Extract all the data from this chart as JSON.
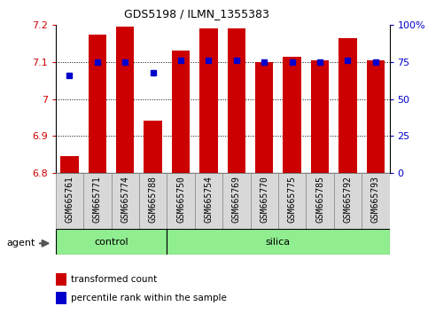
{
  "title": "GDS5198 / ILMN_1355383",
  "samples": [
    "GSM665761",
    "GSM665771",
    "GSM665774",
    "GSM665788",
    "GSM665750",
    "GSM665754",
    "GSM665769",
    "GSM665770",
    "GSM665775",
    "GSM665785",
    "GSM665792",
    "GSM665793"
  ],
  "transformed_count": [
    6.845,
    7.175,
    7.195,
    6.94,
    7.13,
    7.19,
    7.19,
    7.1,
    7.115,
    7.105,
    7.165,
    7.105
  ],
  "percentile_rank": [
    66,
    75,
    75,
    68,
    76,
    76,
    76,
    75,
    75,
    75,
    76,
    75
  ],
  "group_control": {
    "label": "control",
    "start": 0,
    "end": 4
  },
  "group_silica": {
    "label": "silica",
    "start": 4,
    "end": 12
  },
  "group_color": "#90EE90",
  "ylim_left": [
    6.8,
    7.2
  ],
  "ylim_right": [
    0,
    100
  ],
  "yticks_left": [
    6.8,
    6.9,
    7.0,
    7.1,
    7.2
  ],
  "ytick_labels_left": [
    "6.8",
    "6.9",
    "7",
    "7.1",
    "7.2"
  ],
  "yticks_right": [
    0,
    25,
    50,
    75,
    100
  ],
  "ytick_labels_right": [
    "0",
    "25",
    "50",
    "75",
    "100%"
  ],
  "bar_color": "#CC0000",
  "dot_color": "#0000CC",
  "bar_bottom": 6.8,
  "bar_width": 0.65,
  "legend_label_red": "transformed count",
  "legend_label_blue": "percentile rank within the sample",
  "ylabel_left_color": "#CC0000",
  "ylabel_right_color": "#0000CC",
  "grid_yticks": [
    6.9,
    7.0,
    7.1
  ],
  "xticklabel_fontsize": 7,
  "yticklabel_fontsize": 8
}
